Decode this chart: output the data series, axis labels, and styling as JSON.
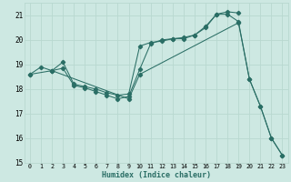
{
  "xlabel": "Humidex (Indice chaleur)",
  "xlim": [
    -0.5,
    23.5
  ],
  "ylim": [
    15,
    21.5
  ],
  "yticks": [
    15,
    16,
    17,
    18,
    19,
    20,
    21
  ],
  "xticks": [
    0,
    1,
    2,
    3,
    4,
    5,
    6,
    7,
    8,
    9,
    10,
    11,
    12,
    13,
    14,
    15,
    16,
    17,
    18,
    19,
    20,
    21,
    22,
    23
  ],
  "bg_color": "#cde8e2",
  "grid_color_major": "#b8d8d0",
  "grid_color_minor": "#d4eeea",
  "line_color": "#2a6e65",
  "lines": [
    {
      "x": [
        0,
        2,
        9,
        10,
        19,
        20,
        21,
        22,
        23
      ],
      "y": [
        18.6,
        18.75,
        17.6,
        18.6,
        20.7,
        18.4,
        17.3,
        16.0,
        15.3
      ]
    },
    {
      "x": [
        0,
        1,
        2,
        3,
        4,
        5,
        6,
        7,
        8,
        9,
        10,
        11,
        12,
        13,
        14,
        15,
        16,
        17,
        18,
        19,
        20,
        21,
        22,
        23
      ],
      "y": [
        18.6,
        18.9,
        18.75,
        18.85,
        18.15,
        18.05,
        17.9,
        17.75,
        17.6,
        17.7,
        18.8,
        19.85,
        20.0,
        20.05,
        20.05,
        20.2,
        20.5,
        21.05,
        21.05,
        20.75,
        18.4,
        17.3,
        16.0,
        15.3
      ]
    },
    {
      "x": [
        2,
        3,
        4,
        5,
        6,
        7,
        8,
        9,
        10,
        11,
        12,
        13,
        14,
        15,
        16,
        17,
        18,
        19
      ],
      "y": [
        18.75,
        19.1,
        18.2,
        18.1,
        18.0,
        17.85,
        17.75,
        17.8,
        19.75,
        19.9,
        19.95,
        20.05,
        20.1,
        20.2,
        20.55,
        21.05,
        21.15,
        21.1
      ]
    }
  ]
}
